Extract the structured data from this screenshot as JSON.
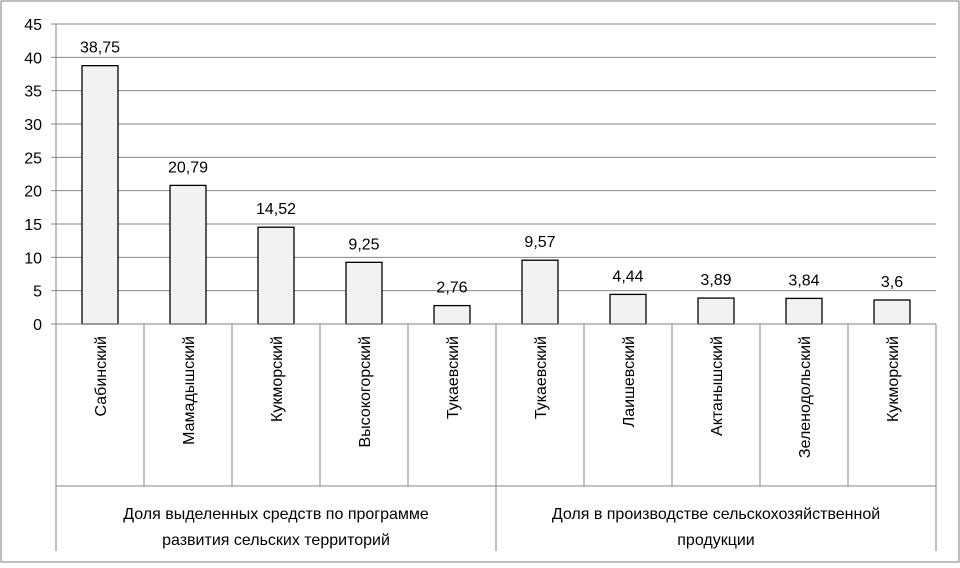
{
  "chart_data": {
    "type": "bar",
    "title": "",
    "xlabel": "",
    "ylabel": "",
    "ylim": [
      0,
      45
    ],
    "yticks": [
      "0",
      "5",
      "10",
      "15",
      "20",
      "25",
      "30",
      "35",
      "40",
      "45"
    ],
    "grid": true,
    "legend": "none",
    "bar_fill": "#f2f2f2",
    "bar_stroke": "#000000",
    "categories": [
      "Сабинский",
      "Мамадышский",
      "Кукморский",
      "Высокогорский",
      "Тукаевский",
      "Тукаевский",
      "Лаишевский",
      "Актанышский",
      "Зеленодольский",
      "Кукморский"
    ],
    "values": [
      38.75,
      20.79,
      14.52,
      9.25,
      2.76,
      9.57,
      4.44,
      3.89,
      3.84,
      3.6
    ],
    "value_labels": [
      "38,75",
      "20,79",
      "14,52",
      "9,25",
      "2,76",
      "9,57",
      "4,44",
      "3,89",
      "3,84",
      "3,6"
    ],
    "groups": [
      {
        "label_lines": [
          "Доля выделенных средств по программе",
          "развития сельских территорий"
        ],
        "count": 5
      },
      {
        "label_lines": [
          "Доля в производстве сельскохозяйственной",
          "продукции"
        ],
        "count": 5
      }
    ]
  }
}
